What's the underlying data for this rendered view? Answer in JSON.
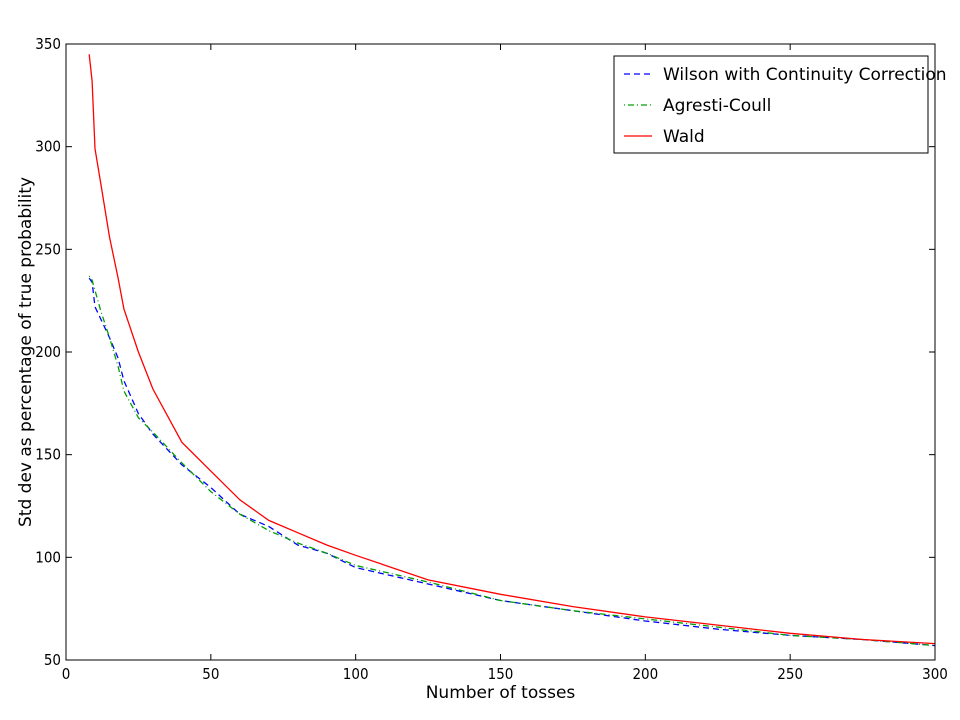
{
  "chart_data": {
    "type": "line",
    "title": "",
    "xlabel": "Number of tosses",
    "ylabel": "Std dev as percentage of true probability",
    "xlim": [
      0,
      300
    ],
    "ylim": [
      50,
      350
    ],
    "xticks": [
      0,
      50,
      100,
      150,
      200,
      250,
      300
    ],
    "yticks": [
      50,
      100,
      150,
      200,
      250,
      300,
      350
    ],
    "grid": false,
    "legend_position": "top-right",
    "series": [
      {
        "name": "Wilson with Continuity Correction",
        "color": "#0000ff",
        "style": "dashed",
        "x": [
          8,
          9,
          10,
          12,
          15,
          18,
          20,
          25,
          30,
          40,
          50,
          60,
          70,
          80,
          90,
          100,
          125,
          150,
          175,
          200,
          225,
          250,
          275,
          300
        ],
        "y": [
          236,
          234,
          222,
          216,
          207,
          197,
          186,
          170,
          160,
          145,
          134,
          121,
          115,
          106,
          102,
          95,
          87,
          79,
          74,
          69,
          65,
          62,
          60,
          57
        ]
      },
      {
        "name": "Agresti-Coull",
        "color": "#00a000",
        "style": "dashdot",
        "x": [
          8,
          9,
          10,
          12,
          15,
          18,
          20,
          25,
          30,
          40,
          50,
          60,
          70,
          80,
          90,
          100,
          125,
          150,
          175,
          200,
          225,
          250,
          275,
          300
        ],
        "y": [
          237,
          235,
          230,
          220,
          207,
          193,
          181,
          168,
          161,
          146,
          132,
          121,
          113,
          107,
          102,
          96,
          88,
          79,
          74,
          70,
          66,
          62,
          60,
          57
        ]
      },
      {
        "name": "Wald",
        "color": "#ff0000",
        "style": "solid",
        "x": [
          8,
          9,
          10,
          12,
          15,
          18,
          20,
          25,
          30,
          40,
          50,
          60,
          70,
          80,
          90,
          100,
          125,
          150,
          175,
          200,
          225,
          250,
          275,
          300
        ],
        "y": [
          345,
          332,
          299,
          282,
          256,
          236,
          221,
          200,
          182,
          156,
          142,
          128,
          118,
          112,
          106,
          101,
          89,
          82,
          76,
          71,
          67,
          63,
          60,
          58
        ]
      }
    ]
  }
}
